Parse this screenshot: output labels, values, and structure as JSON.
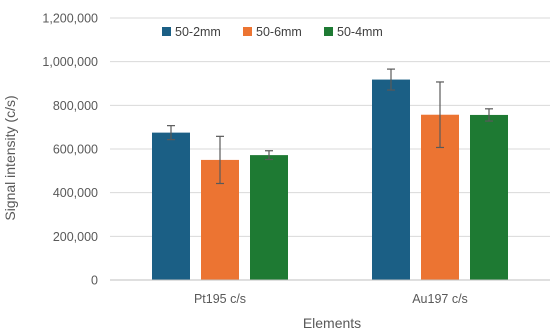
{
  "chart_data": {
    "type": "bar",
    "title": "",
    "xlabel": "Elements",
    "ylabel": "Signal intensity (c/s)",
    "ylim": [
      0,
      1200000
    ],
    "ytick_step": 200000,
    "y_tick_labels": [
      "0",
      "200,000",
      "400,000",
      "600,000",
      "800,000",
      "1,000,000",
      "1,200,000"
    ],
    "categories": [
      "Pt195 c/s",
      "Au197 c/s"
    ],
    "grid": true,
    "legend_position": "top-left",
    "series": [
      {
        "name": "50-2mm",
        "color": "#1b5f85",
        "values": [
          675000,
          918000
        ],
        "errors": [
          32000,
          48000
        ]
      },
      {
        "name": "50-6mm",
        "color": "#ec7432",
        "values": [
          550000,
          757000
        ],
        "errors": [
          108000,
          150000
        ]
      },
      {
        "name": "50-4mm",
        "color": "#1e7a33",
        "values": [
          572000,
          756000
        ],
        "errors": [
          20000,
          28000
        ]
      }
    ]
  }
}
